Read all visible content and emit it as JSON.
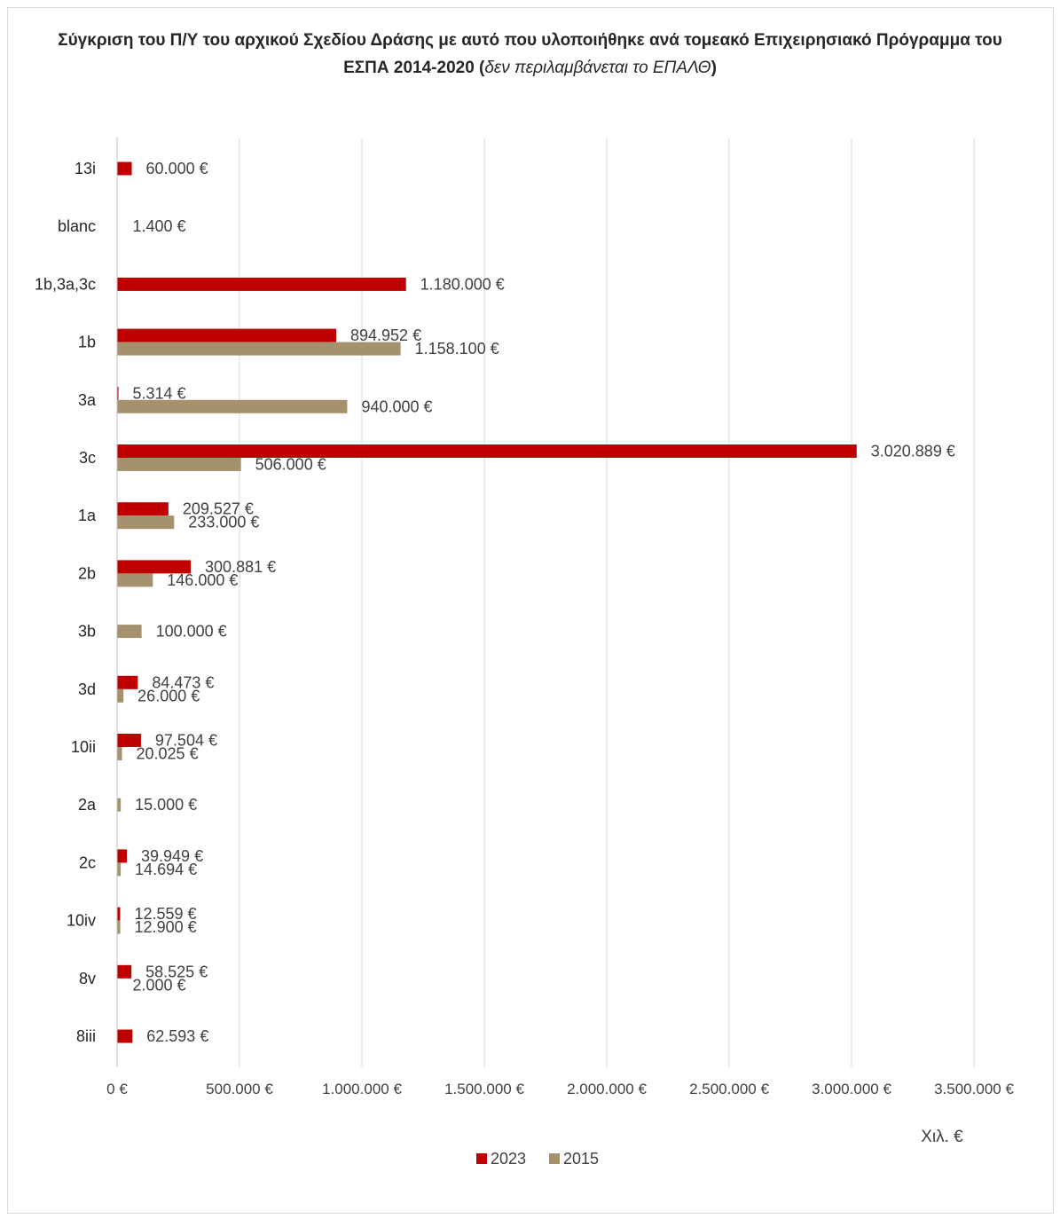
{
  "chart_data": {
    "type": "bar",
    "orientation": "horizontal",
    "title": {
      "main": "Σύγκριση του Π/Υ του αρχικού Σχεδίου Δράσης με αυτό που υλοποιήθηκε ανά τομεακό Επιχειρησιακό Πρόγραμμα του ΕΣΠΑ 2014-2020 (",
      "italic": "δεν περιλαμβάνεται το ΕΠΑΛΘ",
      "close": ")"
    },
    "xlabel": "Χιλ. €",
    "ylabel": "",
    "xlim": [
      0,
      3500000
    ],
    "x_ticks": [
      0,
      500000,
      1000000,
      1500000,
      2000000,
      2500000,
      3000000,
      3500000
    ],
    "x_tick_labels": [
      "0 €",
      "500.000 €",
      "1.000.000 €",
      "1.500.000 €",
      "2.000.000 €",
      "2.500.000 €",
      "3.000.000 €",
      "3.500.000 €"
    ],
    "grid": true,
    "legend_position": "bottom",
    "categories": [
      "13i",
      "blanc",
      "1b,3a,3c",
      "1b",
      "3a",
      "3c",
      "1a",
      "2b",
      "3b",
      "3d",
      "10ii",
      "2a",
      "2c",
      "10iv",
      "8v",
      "8iii"
    ],
    "series": [
      {
        "name": "2023",
        "color": "#c00000",
        "values": [
          60000,
          null,
          1180000,
          894952,
          5314,
          3020889,
          209527,
          300881,
          null,
          84473,
          97504,
          null,
          39949,
          12559,
          58525,
          62593
        ],
        "labels": [
          "60.000 €",
          null,
          "1.180.000 €",
          "894.952 €",
          "5.314 €",
          "3.020.889 €",
          "209.527 €",
          "300.881 €",
          null,
          "84.473 €",
          "97.504 €",
          null,
          "39.949 €",
          "12.559 €",
          "58.525 €",
          "62.593 €"
        ]
      },
      {
        "name": "2015",
        "color": "#a5916c",
        "values": [
          null,
          1400,
          null,
          1158100,
          940000,
          506000,
          233000,
          146000,
          100000,
          26000,
          20025,
          15000,
          14694,
          12900,
          2000,
          null
        ],
        "labels": [
          null,
          "1.400 €",
          null,
          "1.158.100 €",
          "940.000 €",
          "506.000 €",
          "233.000 €",
          "146.000 €",
          "100.000 €",
          "26.000 €",
          "20.025 €",
          "15.000 €",
          "14.694 €",
          "12.900 €",
          "2.000 €",
          null
        ]
      }
    ]
  }
}
